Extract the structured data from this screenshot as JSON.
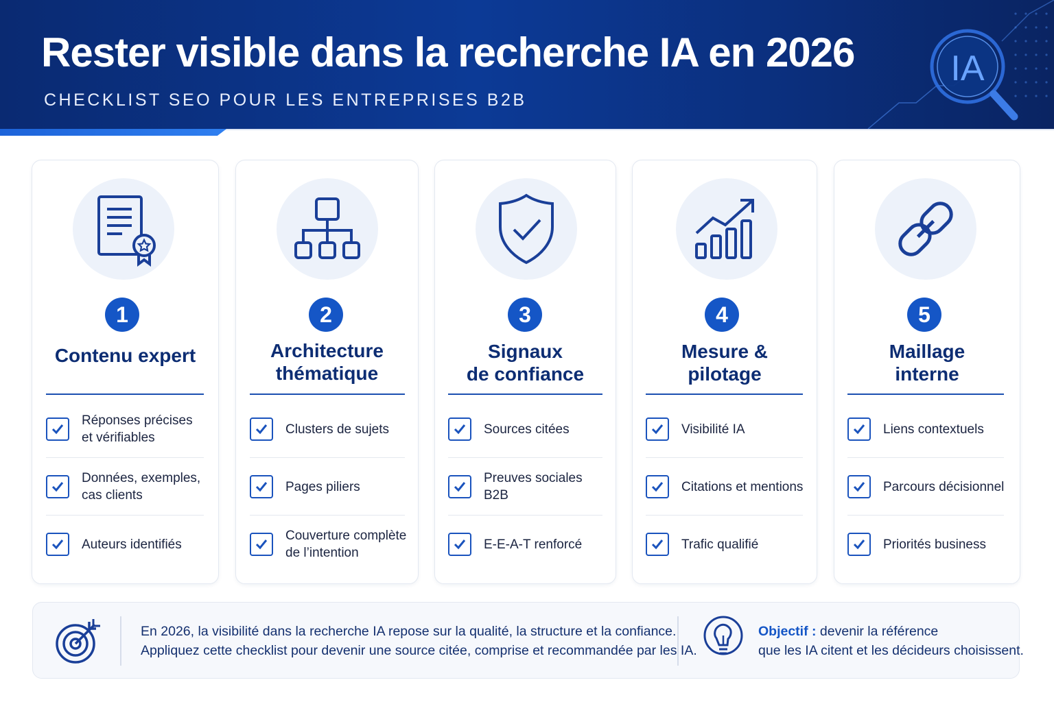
{
  "header": {
    "title": "Rester visible dans la recherche IA en 2026",
    "subtitle": "CHECKLIST SEO POUR LES ENTREPRISES B2B",
    "badge": "IA",
    "badge_icon": "magnifier-icon"
  },
  "colors": {
    "header_bg": "#0c3a96",
    "accent": "#1556c6",
    "title_text": "#0d2d73",
    "icon_circle": "#edf2fa"
  },
  "cards": [
    {
      "number": "1",
      "title_line1": "Contenu expert",
      "title_line2": "",
      "icon": "certificate-document-icon",
      "items": [
        {
          "line1": "Réponses précises",
          "line2": "et vérifiables"
        },
        {
          "line1": "Données, exemples,",
          "line2": "cas clients"
        },
        {
          "line1": "Auteurs identifiés",
          "line2": ""
        }
      ]
    },
    {
      "number": "2",
      "title_line1": "Architecture",
      "title_line2": "thématique",
      "icon": "sitemap-icon",
      "items": [
        {
          "line1": "Clusters de sujets",
          "line2": ""
        },
        {
          "line1": "Pages piliers",
          "line2": ""
        },
        {
          "line1": "Couverture complète",
          "line2": "de l’intention"
        }
      ]
    },
    {
      "number": "3",
      "title_line1": "Signaux",
      "title_line2": "de confiance",
      "icon": "shield-check-icon",
      "items": [
        {
          "line1": "Sources citées",
          "line2": ""
        },
        {
          "line1": "Preuves sociales B2B",
          "line2": ""
        },
        {
          "line1": "E-E-A-T renforcé",
          "line2": ""
        }
      ]
    },
    {
      "number": "4",
      "title_line1": "Mesure &",
      "title_line2": "pilotage",
      "icon": "growth-chart-icon",
      "items": [
        {
          "line1": "Visibilité IA",
          "line2": ""
        },
        {
          "line1": "Citations et mentions",
          "line2": ""
        },
        {
          "line1": "Trafic qualifié",
          "line2": ""
        }
      ]
    },
    {
      "number": "5",
      "title_line1": "Maillage",
      "title_line2": "interne",
      "icon": "link-icon",
      "items": [
        {
          "line1": "Liens contextuels",
          "line2": ""
        },
        {
          "line1": "Parcours décisionnel",
          "line2": ""
        },
        {
          "line1": "Priorités business",
          "line2": ""
        }
      ]
    }
  ],
  "footer": {
    "text_line1": "En 2026, la visibilité dans la recherche IA repose sur la qualité, la structure et la confiance.",
    "text_line2": "Appliquez cette checklist pour devenir une source citée, comprise et recommandée par les IA.",
    "objective_label": "Objectif :",
    "objective_line1": " devenir la référence",
    "objective_line2": "que les IA citent et les décideurs choisissent.",
    "left_icon": "target-arrow-icon",
    "right_icon": "lightbulb-icon"
  }
}
